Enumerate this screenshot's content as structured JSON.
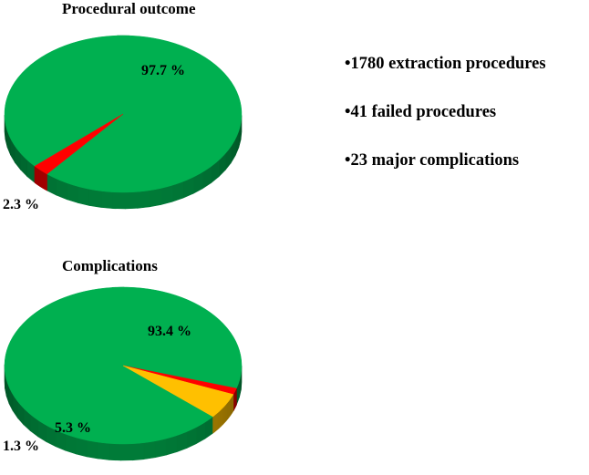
{
  "chart_data": [
    {
      "type": "pie",
      "title": "Procedural outcome",
      "slices": [
        {
          "value": 97.7,
          "label": "97.7 %",
          "color": "#00b050"
        },
        {
          "value": 2.3,
          "label": "2.3 %",
          "color": "#ff0000"
        }
      ]
    },
    {
      "type": "pie",
      "title": "Complications",
      "slices": [
        {
          "value": 93.4,
          "label": "93.4 %",
          "color": "#00b050"
        },
        {
          "value": 1.3,
          "label": "1.3 %",
          "color": "#ff0000"
        },
        {
          "value": 5.3,
          "label": "5.3 %",
          "color": "#ffc000"
        }
      ]
    }
  ],
  "stats": [
    "•1780 extraction procedures",
    "•41 failed procedures",
    "•23 major complications"
  ]
}
